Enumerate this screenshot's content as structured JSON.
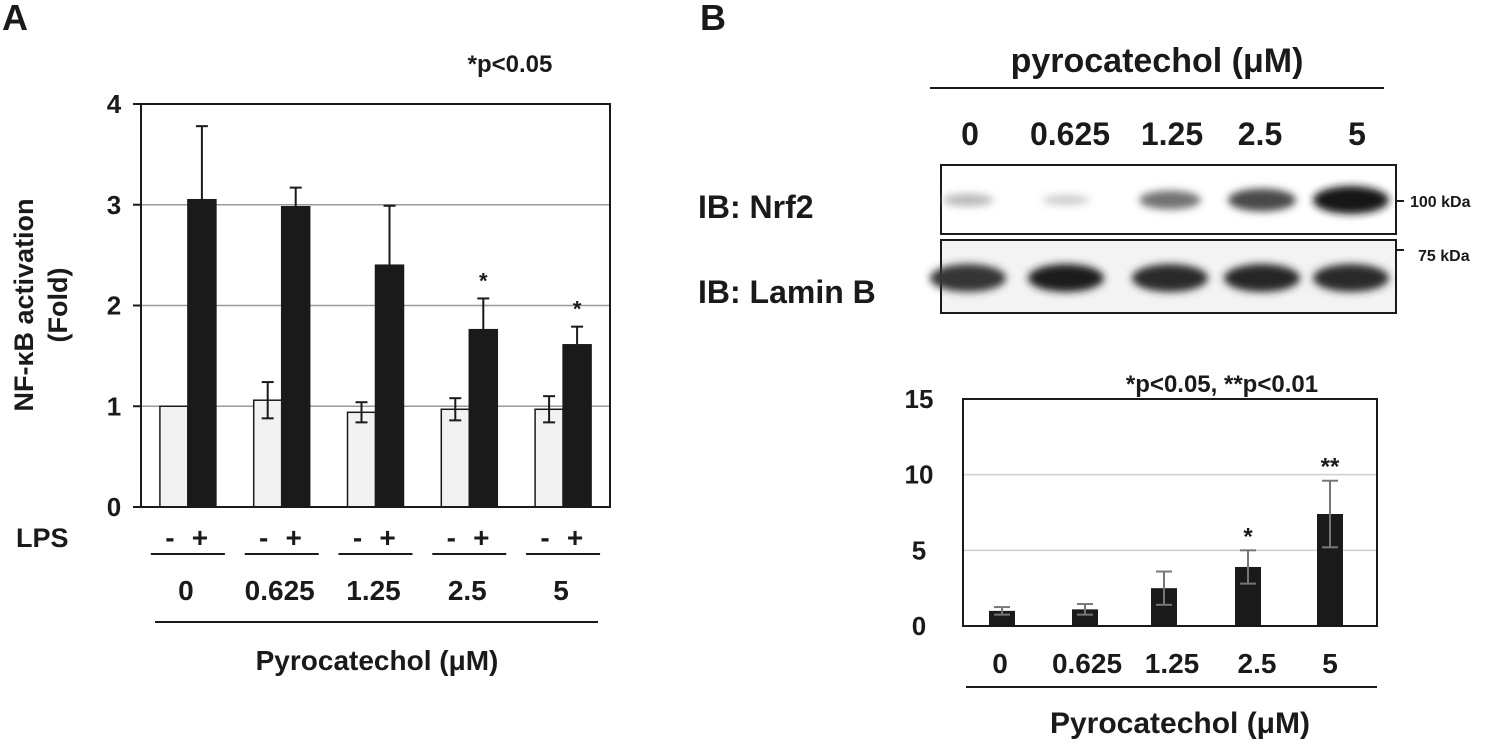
{
  "panel_a": {
    "label": "A",
    "pvalue_note": "*p<0.05",
    "ylabel_line1": "NF-κB activation",
    "ylabel_line2": "(Fold)",
    "lps_label": "LPS",
    "minus": "-",
    "plus": "+",
    "xtitle": "Pyrocatechol (μM)"
  },
  "panel_b": {
    "label": "B",
    "blot_title": "pyrocatechol (μM)",
    "lanes": [
      "0",
      "0.625",
      "1.25",
      "2.5",
      "5"
    ],
    "row1_label": "IB: Nrf2",
    "row2_label": "IB: Lamin B",
    "marker_100": "100 kDa",
    "marker_75": "75 kDa",
    "nrf2_band_intensity": [
      0.22,
      0.12,
      0.55,
      0.75,
      1.0
    ],
    "lamin_band_intensity": [
      0.85,
      0.95,
      0.9,
      0.92,
      0.9
    ],
    "pvalue_note": "*p<0.05, **p<0.01",
    "xtitle": "Pyrocatechol (μM)"
  },
  "chart_data": [
    {
      "type": "bar",
      "categories": [
        "0",
        "0.625",
        "1.25",
        "2.5",
        "5"
      ],
      "series": [
        {
          "name": "-",
          "values": [
            1.0,
            1.06,
            0.94,
            0.97,
            0.97
          ],
          "errors": [
            0,
            0.18,
            0.1,
            0.11,
            0.13
          ],
          "significance": [
            "",
            "",
            "",
            "",
            ""
          ]
        },
        {
          "name": "+",
          "values": [
            3.05,
            2.98,
            2.4,
            1.76,
            1.61
          ],
          "errors": [
            0.73,
            0.19,
            0.59,
            0.31,
            0.18
          ],
          "significance": [
            "",
            "",
            "",
            "*",
            "*"
          ]
        }
      ],
      "yticks": [
        "0",
        "1",
        "2",
        "3",
        "4"
      ],
      "ylim": [
        0,
        4
      ],
      "grid": true,
      "colors": {
        "minus": "#f2f2f2",
        "plus": "#1a1a1a"
      }
    },
    {
      "type": "bar",
      "categories": [
        "0",
        "0.625",
        "1.25",
        "2.5",
        "5"
      ],
      "values": [
        1.0,
        1.1,
        2.5,
        3.9,
        7.4
      ],
      "errors": [
        0.25,
        0.35,
        1.1,
        1.1,
        2.2
      ],
      "significance": [
        "",
        "",
        "",
        "*",
        "**"
      ],
      "yticks": [
        "0",
        "5",
        "10",
        "15"
      ],
      "ylim": [
        0,
        15
      ],
      "grid": true,
      "colors": {
        "bar": "#1a1a1a",
        "error": "#777777"
      }
    }
  ]
}
